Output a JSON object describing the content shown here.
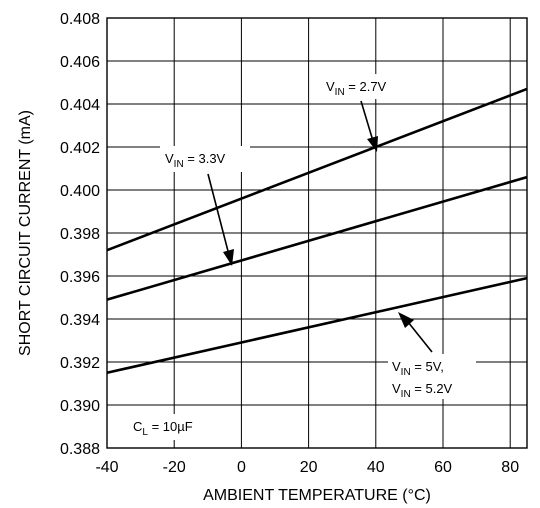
{
  "chart_data": {
    "type": "line",
    "xlabel": "AMBIENT TEMPERATURE (°C)",
    "ylabel": "SHORT CIRCUIT CURRENT (mA)",
    "xlim": [
      -40,
      85
    ],
    "ylim": [
      0.388,
      0.408
    ],
    "xticks": [
      "-40",
      "-20",
      "0",
      "20",
      "40",
      "60",
      "80"
    ],
    "yticks": [
      "0.388",
      "0.390",
      "0.392",
      "0.394",
      "0.396",
      "0.398",
      "0.400",
      "0.402",
      "0.404",
      "0.406",
      "0.408"
    ],
    "grid": true,
    "series": [
      {
        "x": [
          -40,
          85
        ],
        "y": [
          0.3972,
          0.4047
        ]
      },
      {
        "x": [
          -40,
          85
        ],
        "y": [
          0.3949,
          0.4006
        ]
      },
      {
        "x": [
          -40,
          85
        ],
        "y": [
          0.3915,
          0.3959
        ]
      }
    ],
    "annotations": [
      {
        "sub": "IN",
        "value": " = 2.7V"
      },
      {
        "sub": "IN",
        "value": " = 3.3V"
      },
      {
        "sub": "IN",
        "value": " = 5V,"
      },
      {
        "sub": "IN",
        "value": " = 5.2V"
      },
      {
        "sub": "L",
        "value": " = 10µF"
      }
    ]
  }
}
